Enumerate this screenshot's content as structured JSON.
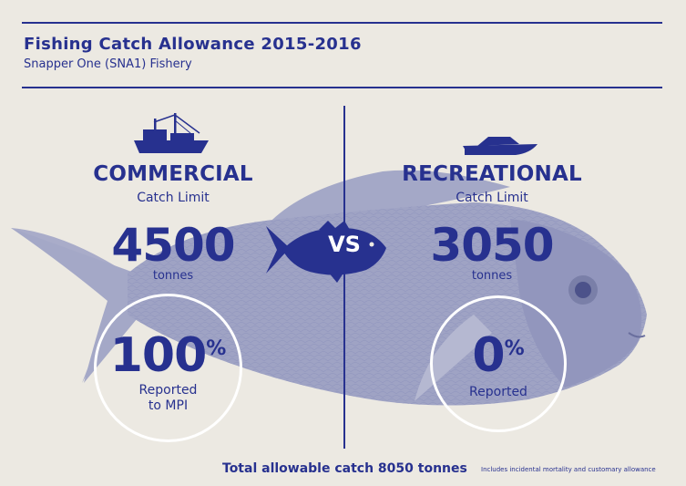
{
  "header": {
    "title": "Fishing Catch Allowance 2015-2016",
    "subtitle": "Snapper One (SNA1) Fishery"
  },
  "commercial": {
    "heading": "COMMERCIAL",
    "sub": "Catch Limit",
    "limit": "4500",
    "unit": "tonnes",
    "reported_value": "100",
    "reported_sign": "%",
    "reported_line1": "Reported",
    "reported_line2": "to MPI",
    "icon": "fishing-boat-icon"
  },
  "recreational": {
    "heading": "RECREATIONAL",
    "sub": "Catch Limit",
    "limit": "3050",
    "unit": "tonnes",
    "reported_value": "0",
    "reported_sign": "%",
    "reported_line1": "Reported",
    "icon": "speedboat-icon"
  },
  "vs_label": "VS",
  "footer": {
    "total": "Total allowable catch 8050 tonnes",
    "note": "Includes incidental mortality and customary allowance"
  },
  "colors": {
    "primary": "#27318f",
    "background": "#ece9e2",
    "fish": "#9fa3c4"
  }
}
